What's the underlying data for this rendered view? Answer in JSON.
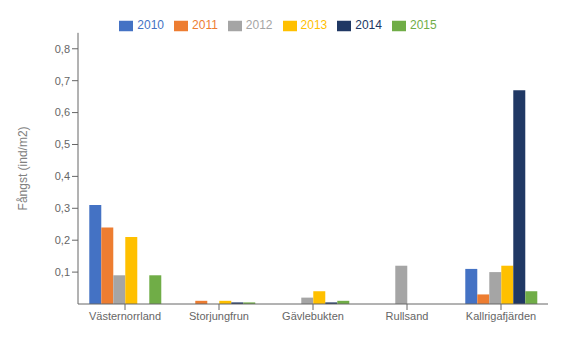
{
  "chart_data": {
    "type": "bar",
    "categories": [
      "Västernorrland",
      "Storjungfrun",
      "Gävlebukten",
      "Rullsand",
      "Kallrigafjärden"
    ],
    "series": [
      {
        "name": "2010",
        "color": "#4472C4",
        "values": [
          0.31,
          0.0,
          0.0,
          0.0,
          0.11
        ]
      },
      {
        "name": "2011",
        "color": "#ED7D31",
        "values": [
          0.24,
          0.01,
          0.0,
          0.0,
          0.03
        ]
      },
      {
        "name": "2012",
        "color": "#A5A5A5",
        "values": [
          0.09,
          0.0,
          0.02,
          0.12,
          0.1
        ]
      },
      {
        "name": "2013",
        "color": "#FFC000",
        "values": [
          0.21,
          0.01,
          0.04,
          0.0,
          0.12
        ]
      },
      {
        "name": "2014",
        "color": "#203864",
        "values": [
          0.0,
          0.005,
          0.005,
          0.0,
          0.67
        ]
      },
      {
        "name": "2015",
        "color": "#70AD47",
        "values": [
          0.09,
          0.005,
          0.01,
          0.0,
          0.04
        ]
      }
    ],
    "ylabel": "Fångst (ind/m2)",
    "ylim": [
      0,
      0.85
    ],
    "yticks": [
      {
        "value": 0.1,
        "label": "0,1"
      },
      {
        "value": 0.2,
        "label": "0,2"
      },
      {
        "value": 0.3,
        "label": "0,3"
      },
      {
        "value": 0.4,
        "label": "0,4"
      },
      {
        "value": 0.5,
        "label": "0,5"
      },
      {
        "value": 0.6,
        "label": "0,6"
      },
      {
        "value": 0.7,
        "label": "0,7"
      },
      {
        "value": 0.8,
        "label": "0,8"
      }
    ],
    "grid": false,
    "legend": "top"
  }
}
